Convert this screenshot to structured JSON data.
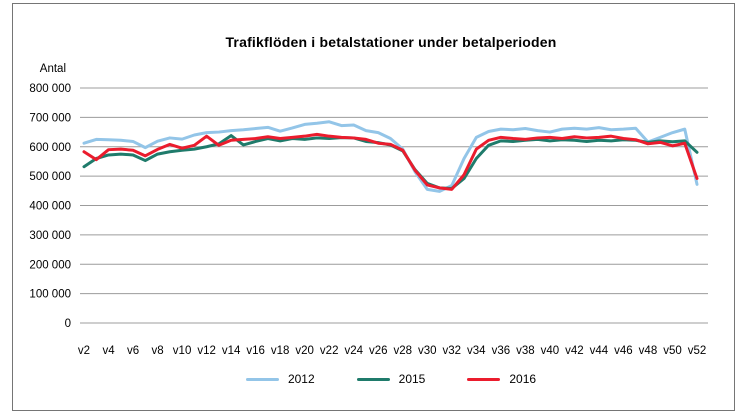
{
  "frame": {
    "border_color": "#757575",
    "background": "#ffffff"
  },
  "chart_data": {
    "type": "line",
    "title": "Trafikflöden i betalstationer under betalperioden",
    "y_axis_title": "Antal",
    "xlabel": "",
    "ylabel": "Antal",
    "ylim": [
      0,
      800000
    ],
    "grid": "horizontal",
    "gridline_color": "#9c9c9c",
    "legend_position": "bottom",
    "x": [
      "v2",
      "v3",
      "v4",
      "v5",
      "v6",
      "v7",
      "v8",
      "v9",
      "v10",
      "v11",
      "v12",
      "v13",
      "v14",
      "v15",
      "v16",
      "v17",
      "v18",
      "v19",
      "v20",
      "v21",
      "v22",
      "v23",
      "v24",
      "v25",
      "v26",
      "v27",
      "v28",
      "v29",
      "v30",
      "v31",
      "v32",
      "v33",
      "v34",
      "v35",
      "v36",
      "v37",
      "v38",
      "v39",
      "v40",
      "v41",
      "v42",
      "v43",
      "v44",
      "v45",
      "v46",
      "v47",
      "v48",
      "v49",
      "v50",
      "v51",
      "v52"
    ],
    "x_tick_labels": [
      "v2",
      "v4",
      "v6",
      "v8",
      "v10",
      "v12",
      "v14",
      "v16",
      "v18",
      "v20",
      "v22",
      "v24",
      "v26",
      "v28",
      "v30",
      "v32",
      "v34",
      "v36",
      "v38",
      "v40",
      "v42",
      "v44",
      "v46",
      "v48",
      "v50",
      "v52"
    ],
    "y_ticks": [
      0,
      100000,
      200000,
      300000,
      400000,
      500000,
      600000,
      700000,
      800000
    ],
    "y_tick_labels": [
      "0",
      "100 000",
      "200 000",
      "300 000",
      "400 000",
      "500 000",
      "600 000",
      "700 000",
      "800 000"
    ],
    "series": [
      {
        "name": "2012",
        "color": "#93C5E8",
        "values": [
          612000,
          625000,
          624000,
          622000,
          618000,
          597000,
          619000,
          630000,
          626000,
          640000,
          648000,
          650000,
          655000,
          658000,
          662000,
          666000,
          653000,
          664000,
          676000,
          680000,
          685000,
          672000,
          674000,
          655000,
          648000,
          628000,
          592000,
          515000,
          455000,
          448000,
          468000,
          560000,
          632000,
          652000,
          660000,
          658000,
          662000,
          655000,
          650000,
          660000,
          663000,
          660000,
          665000,
          658000,
          660000,
          663000,
          616000,
          632000,
          648000,
          660000,
          472000
        ]
      },
      {
        "name": "2015",
        "color": "#1F7B6B",
        "values": [
          532000,
          560000,
          572000,
          575000,
          572000,
          553000,
          575000,
          583000,
          588000,
          592000,
          600000,
          610000,
          638000,
          606000,
          618000,
          628000,
          620000,
          628000,
          625000,
          630000,
          628000,
          631000,
          630000,
          618000,
          614000,
          606000,
          586000,
          522000,
          475000,
          460000,
          458000,
          492000,
          560000,
          605000,
          620000,
          618000,
          622000,
          625000,
          620000,
          624000,
          622000,
          618000,
          622000,
          620000,
          624000,
          622000,
          615000,
          620000,
          617000,
          620000,
          581000
        ]
      },
      {
        "name": "2016",
        "color": "#EB1C2D",
        "values": [
          583000,
          556000,
          590000,
          592000,
          588000,
          569000,
          591000,
          608000,
          595000,
          605000,
          636000,
          605000,
          622000,
          625000,
          628000,
          634000,
          628000,
          632000,
          636000,
          642000,
          636000,
          632000,
          630000,
          625000,
          612000,
          608000,
          588000,
          520000,
          470000,
          460000,
          455000,
          505000,
          592000,
          622000,
          632000,
          628000,
          625000,
          630000,
          632000,
          628000,
          634000,
          630000,
          632000,
          636000,
          628000,
          624000,
          610000,
          615000,
          603000,
          612000,
          492000
        ]
      }
    ]
  }
}
